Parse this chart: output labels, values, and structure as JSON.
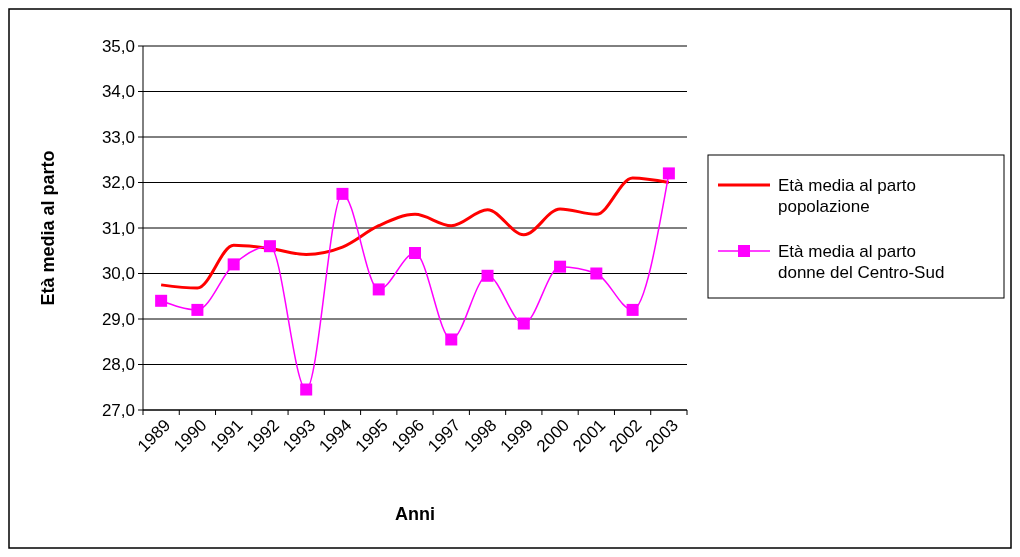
{
  "chart_data": {
    "type": "line",
    "xlabel": "Anni",
    "ylabel": "Età media al parto",
    "categories": [
      "1989",
      "1990",
      "1991",
      "1992",
      "1993",
      "1994",
      "1995",
      "1996",
      "1997",
      "1998",
      "1999",
      "2000",
      "2001",
      "2002",
      "2003"
    ],
    "series": [
      {
        "name": "Età media al parto popolazione",
        "color": "#ff0000",
        "marker": "none",
        "values": [
          29.75,
          29.68,
          30.62,
          30.55,
          30.42,
          30.58,
          31.05,
          31.3,
          31.05,
          31.4,
          30.85,
          31.42,
          31.3,
          32.1,
          32.0
        ]
      },
      {
        "name": "Età media al parto donne del Centro-Sud",
        "color": "#ff00ff",
        "marker": "square",
        "values": [
          29.4,
          29.2,
          30.2,
          30.6,
          27.45,
          31.75,
          29.65,
          30.45,
          28.55,
          29.95,
          28.9,
          30.15,
          30.0,
          29.2,
          32.2
        ]
      }
    ],
    "ylim": [
      27,
      35
    ],
    "yticks": [
      {
        "value": 27,
        "label": "27,0"
      },
      {
        "value": 28,
        "label": "28,0"
      },
      {
        "value": 29,
        "label": "29,0"
      },
      {
        "value": 30,
        "label": "30,0"
      },
      {
        "value": 31,
        "label": "31,0"
      },
      {
        "value": 32,
        "label": "32,0"
      },
      {
        "value": 33,
        "label": "33,0"
      },
      {
        "value": 34,
        "label": "34,0"
      },
      {
        "value": 35,
        "label": "35,0"
      }
    ],
    "grid": "y",
    "legend": "right",
    "line_style": "solid"
  }
}
